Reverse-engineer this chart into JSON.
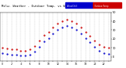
{
  "title": "Milw. Weather - Outdoor Temp. vs Wind Chill (24 Hours)",
  "hours": [
    0,
    1,
    2,
    3,
    4,
    5,
    6,
    7,
    8,
    9,
    10,
    11,
    12,
    13,
    14,
    15,
    16,
    17,
    18,
    19,
    20,
    21,
    22,
    23
  ],
  "temp": [
    10,
    9,
    8,
    8,
    7,
    7,
    8,
    12,
    18,
    24,
    28,
    33,
    37,
    40,
    42,
    40,
    37,
    33,
    28,
    23,
    18,
    14,
    11,
    10
  ],
  "wind_chill": [
    4,
    3,
    2,
    2,
    1,
    1,
    2,
    6,
    11,
    17,
    21,
    26,
    30,
    33,
    35,
    33,
    30,
    26,
    21,
    16,
    11,
    7,
    4,
    3
  ],
  "temp_color": "#cc0000",
  "wind_color": "#0000cc",
  "bg_color": "#ffffff",
  "grid_color": "#888888",
  "ylim": [
    -5,
    50
  ],
  "yticks": [
    0,
    10,
    20,
    30,
    40,
    50
  ],
  "xlim": [
    -0.5,
    23.5
  ]
}
